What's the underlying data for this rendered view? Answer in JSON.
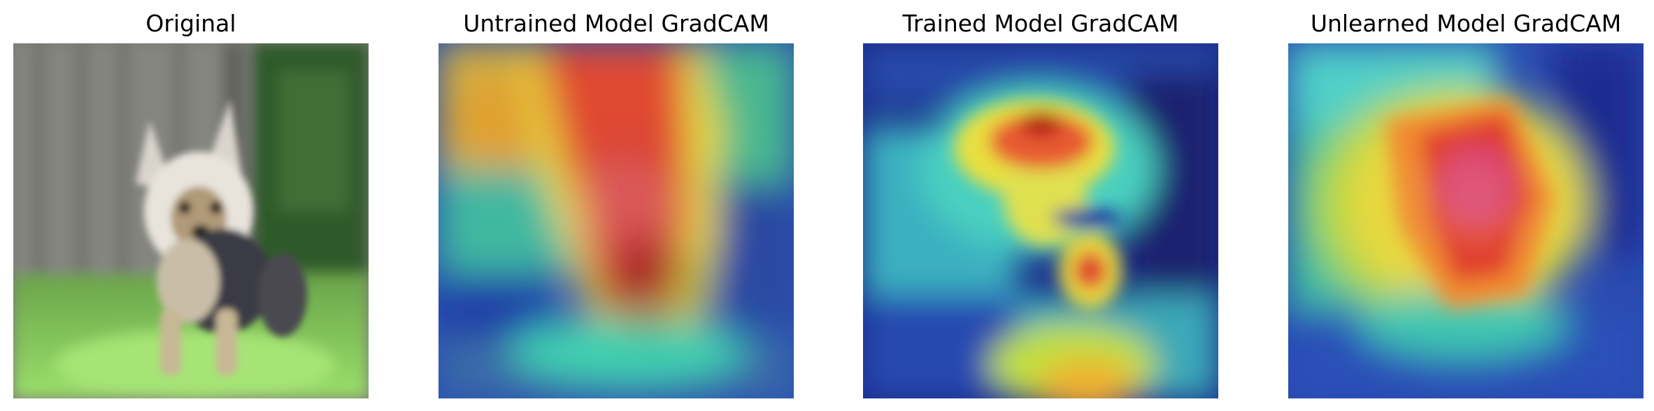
{
  "figure": {
    "panels": [
      {
        "title": "Original"
      },
      {
        "title": "Untrained Model GradCAM"
      },
      {
        "title": "Trained Model GradCAM"
      },
      {
        "title": "Unlearned Model GradCAM"
      }
    ],
    "colors": {
      "fence": "#7f7f78",
      "hedge": "#2f5a2a",
      "grass": "#8bd25c",
      "dog_fur": "#e6e2da",
      "dog_dark": "#3a3a44",
      "jet_low": "#1a2a9a",
      "jet_mid": "#3fe0c8",
      "jet_high": "#e0302a"
    }
  }
}
